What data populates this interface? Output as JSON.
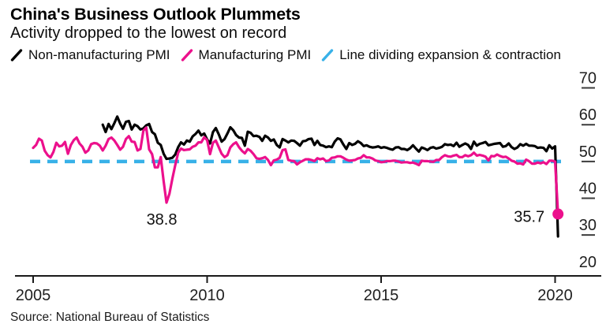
{
  "header": {
    "title": "China's Business Outlook Plummets",
    "subtitle": "Activity dropped to the lowest on record"
  },
  "legend": [
    {
      "label": "Non-manufacturing PMI",
      "color": "#000000"
    },
    {
      "label": "Manufacturing PMI",
      "color": "#ec108c"
    },
    {
      "label": "Line dividing expansion & contraction",
      "color": "#38b1e8"
    }
  ],
  "source": "Source: National Bureau of Statistics",
  "palette": {
    "black": "#000000",
    "pink": "#ec108c",
    "blue": "#38b1e8",
    "tick_text": "#1f1f1f"
  },
  "chart_data": {
    "type": "line",
    "title": "China's Business Outlook Plummets",
    "subtitle": "Activity dropped to the lowest on record",
    "xlabel": "",
    "ylabel": "",
    "x_axis": {
      "ticks": [
        2005,
        2010,
        2015,
        2020
      ],
      "min": 2005,
      "max": 2020.35
    },
    "y_axis": {
      "ticks": [
        20,
        30,
        40,
        50,
        60,
        70
      ],
      "min": 20,
      "max": 70
    },
    "grid": false,
    "legend_position": "top",
    "reference_line": {
      "value": 50,
      "color": "#38b1e8",
      "style": "dashed",
      "label": "Line dividing expansion & contraction"
    },
    "frequency": "monthly",
    "series": [
      {
        "name": "Non-manufacturing PMI",
        "color": "#000000",
        "start_year": 2007,
        "start_month": 1,
        "end_marker": false,
        "values": [
          60.0,
          58.0,
          60.2,
          58.8,
          60.4,
          62.2,
          60.3,
          58.9,
          60.8,
          61.0,
          58.7,
          60.0,
          59.6,
          58.7,
          59.0,
          59.8,
          60.2,
          58.0,
          57.4,
          55.1,
          54.5,
          52.1,
          50.7,
          50.8,
          51.0,
          51.9,
          53.9,
          55.2,
          54.6,
          55.7,
          55.4,
          56.8,
          57.5,
          58.4,
          57.1,
          57.6,
          56.0,
          54.9,
          58.0,
          59.1,
          57.4,
          55.4,
          56.1,
          57.6,
          59.3,
          58.5,
          57.2,
          56.5,
          56.4,
          54.3,
          58.1,
          57.8,
          56.9,
          57.0,
          56.7,
          55.6,
          57.0,
          56.5,
          55.6,
          56.0,
          54.5,
          53.8,
          56.1,
          55.7,
          55.2,
          55.7,
          55.6,
          55.0,
          54.3,
          55.5,
          55.6,
          56.1,
          56.2,
          54.5,
          55.6,
          54.5,
          54.3,
          53.9,
          54.1,
          53.9,
          55.4,
          56.3,
          56.0,
          54.6,
          53.4,
          55.0,
          54.5,
          54.8,
          55.5,
          55.0,
          54.2,
          54.4,
          54.0,
          53.8,
          53.9,
          54.1,
          53.7,
          53.9,
          53.7,
          53.4,
          53.2,
          53.8,
          53.9,
          53.4,
          53.4,
          53.1,
          53.6,
          54.4,
          53.5,
          52.7,
          53.8,
          53.5,
          53.1,
          53.7,
          53.9,
          53.5,
          53.7,
          54.0,
          54.7,
          54.5,
          54.6,
          54.2,
          55.1,
          54.0,
          54.5,
          54.9,
          54.5,
          53.4,
          55.4,
          54.3,
          54.8,
          55.0,
          55.3,
          54.4,
          54.6,
          54.8,
          54.9,
          55.0,
          54.0,
          54.2,
          54.9,
          53.9,
          53.4,
          53.8,
          54.7,
          54.3,
          54.8,
          54.3,
          54.3,
          54.2,
          53.7,
          53.8,
          53.7,
          52.8,
          54.4,
          53.5,
          54.1,
          29.6
        ]
      },
      {
        "name": "Manufacturing PMI",
        "color": "#ec108c",
        "start_year": 2005,
        "start_month": 1,
        "end_marker": true,
        "values": [
          53.7,
          54.5,
          56.2,
          55.7,
          52.9,
          51.7,
          51.1,
          52.6,
          55.1,
          54.1,
          54.3,
          55.3,
          52.1,
          54.5,
          55.8,
          56.5,
          54.9,
          54.0,
          52.4,
          53.0,
          54.7,
          55.0,
          54.9,
          54.3,
          53.0,
          54.3,
          56.1,
          56.5,
          55.7,
          54.5,
          53.2,
          54.0,
          56.1,
          56.9,
          55.4,
          55.3,
          53.0,
          53.4,
          58.4,
          59.2,
          53.3,
          52.0,
          48.4,
          48.4,
          51.2,
          44.6,
          38.8,
          41.2,
          45.3,
          49.0,
          52.4,
          53.5,
          53.1,
          53.2,
          53.3,
          54.0,
          54.3,
          55.2,
          55.2,
          56.6,
          55.8,
          52.0,
          55.1,
          55.7,
          53.9,
          52.1,
          51.2,
          51.7,
          53.8,
          54.7,
          55.2,
          53.9,
          52.9,
          52.2,
          53.4,
          52.9,
          52.0,
          50.9,
          50.7,
          50.9,
          51.2,
          50.4,
          49.0,
          50.3,
          50.5,
          51.0,
          53.1,
          53.3,
          50.4,
          50.2,
          50.1,
          49.2,
          49.8,
          50.2,
          50.6,
          50.6,
          50.4,
          50.1,
          50.9,
          50.6,
          50.8,
          50.1,
          50.3,
          51.0,
          51.1,
          51.4,
          51.4,
          51.0,
          50.5,
          50.2,
          50.3,
          50.4,
          50.8,
          51.0,
          51.7,
          51.1,
          51.1,
          50.8,
          50.3,
          50.1,
          49.8,
          49.9,
          50.1,
          50.1,
          50.2,
          50.2,
          50.0,
          49.7,
          49.8,
          49.8,
          49.6,
          49.7,
          49.4,
          49.0,
          50.2,
          50.1,
          50.1,
          50.0,
          49.9,
          50.4,
          50.4,
          51.2,
          51.7,
          51.4,
          51.3,
          51.6,
          51.8,
          51.2,
          51.2,
          51.7,
          51.4,
          51.7,
          52.4,
          51.6,
          51.8,
          51.6,
          51.3,
          50.3,
          51.5,
          51.4,
          51.9,
          51.5,
          51.2,
          51.3,
          50.8,
          50.2,
          50.0,
          49.4,
          49.5,
          49.2,
          50.5,
          50.1,
          49.4,
          49.4,
          49.7,
          49.5,
          49.8,
          49.3,
          50.2,
          50.2,
          50.0,
          35.7
        ]
      }
    ],
    "annotations": [
      {
        "text": "38.8",
        "x": 2008.833,
        "y": 38.8,
        "position": "below"
      },
      {
        "text": "35.7",
        "x": 2020.083,
        "y": 35.7,
        "position": "left"
      }
    ]
  }
}
